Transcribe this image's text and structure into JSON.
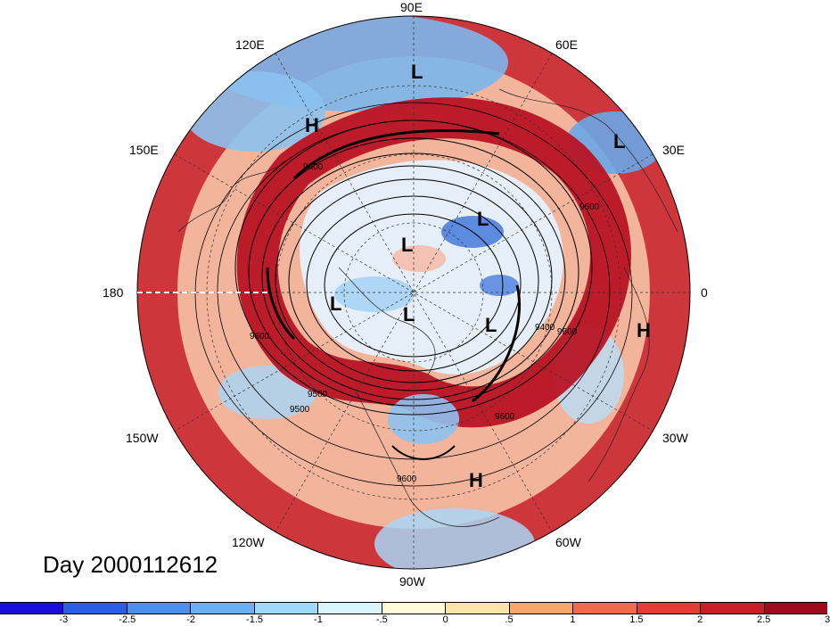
{
  "figure": {
    "date_label": "Day 2000112612"
  },
  "longitude_labels": {
    "lon_90e": "90E",
    "lon_120e": "120E",
    "lon_60e": "60E",
    "lon_150e": "150E",
    "lon_30e": "30E",
    "lon_180": "180",
    "lon_0": "0",
    "lon_150w": "150W",
    "lon_30w": "30W",
    "lon_120w": "120W",
    "lon_60w": "60W",
    "lon_90w": "90W"
  },
  "pressure_systems": [
    {
      "type": "L"
    },
    {
      "type": "H"
    },
    {
      "type": "L"
    },
    {
      "type": "L"
    },
    {
      "type": "L"
    },
    {
      "type": "L"
    },
    {
      "type": "L"
    },
    {
      "type": "L"
    },
    {
      "type": "H"
    },
    {
      "type": "H"
    }
  ],
  "contour_labels": [
    "9600",
    "9600",
    "9600",
    "9500",
    "9500",
    "9400",
    "9600",
    "9600",
    "9600"
  ],
  "colorbar": {
    "colors": [
      "#1a0fd9",
      "#2a5ee6",
      "#4a90ee",
      "#6ab0f4",
      "#a0d8fa",
      "#d8f4fc",
      "#fffbd8",
      "#fce4a8",
      "#f7a76a",
      "#f06a4e",
      "#e43c36",
      "#c81e2a",
      "#a00a1e"
    ],
    "ticks": [
      "-3",
      "-2.5",
      "-2",
      "-1.5",
      "-1",
      "-.5",
      "0",
      ".5",
      "1",
      "1.5",
      "2",
      "2.5",
      "3"
    ]
  }
}
